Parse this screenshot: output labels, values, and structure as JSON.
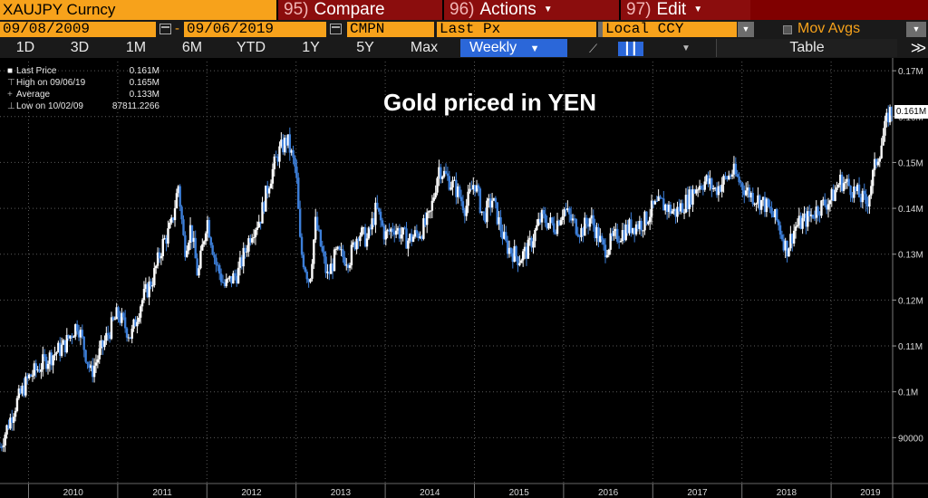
{
  "header": {
    "ticker": "XAUJPY Curncy",
    "compare": {
      "num": "95)",
      "label": "Compare"
    },
    "actions": {
      "num": "96)",
      "label": "Actions"
    },
    "edit": {
      "num": "97)",
      "label": "Edit"
    }
  },
  "controls": {
    "start_date": "09/08/2009",
    "end_date": "09/06/2019",
    "mode": "CMPN",
    "field": "Last Px",
    "currency": "Local CCY",
    "mov_avgs": "Mov Avgs",
    "ranges": [
      "1D",
      "3D",
      "1M",
      "6M",
      "YTD",
      "1Y",
      "5Y",
      "Max"
    ],
    "frequency": "Weekly",
    "table": "Table"
  },
  "legend": [
    {
      "label": "Last Price",
      "value": "0.161M"
    },
    {
      "label": "High on 09/06/19",
      "value": "0.165M"
    },
    {
      "label": "Average",
      "value": "0.133M"
    },
    {
      "label": "Low on 10/02/09",
      "value": "87811.2266"
    }
  ],
  "colors": {
    "accent": "#f7a21b",
    "header_red": "#8b0d0d",
    "candle_up": "#ffffff",
    "candle_down": "#3d7fd9",
    "selected": "#2b67d9"
  },
  "chart_data": {
    "type": "line",
    "title": "Gold priced in YEN",
    "last_value_label": "0.161M",
    "ylim": [
      80000,
      172000
    ],
    "yticks": [
      {
        "value": 90000,
        "label": "90000"
      },
      {
        "value": 100000,
        "label": "0.1M"
      },
      {
        "value": 110000,
        "label": "0.11M"
      },
      {
        "value": 120000,
        "label": "0.12M"
      },
      {
        "value": 130000,
        "label": "0.13M"
      },
      {
        "value": 140000,
        "label": "0.14M"
      },
      {
        "value": 150000,
        "label": "0.15M"
      },
      {
        "value": 160000,
        "label": "0.16M"
      },
      {
        "value": 170000,
        "label": "0.17M"
      }
    ],
    "xlim": [
      2009.68,
      2019.69
    ],
    "xticks": [
      "2010",
      "2011",
      "2012",
      "2013",
      "2014",
      "2015",
      "2016",
      "2017",
      "2018",
      "2019"
    ],
    "series": [
      {
        "x": [
          2009.68,
          2009.85,
          2010.0,
          2010.2,
          2010.4,
          2010.55,
          2010.7,
          2010.9,
          2011.0,
          2011.15,
          2011.25,
          2011.4,
          2011.5,
          2011.6,
          2011.68,
          2011.75,
          2011.82,
          2011.9,
          2012.0,
          2012.1,
          2012.2,
          2012.35,
          2012.5,
          2012.6,
          2012.7,
          2012.8,
          2012.9,
          2013.0,
          2013.05,
          2013.15,
          2013.22,
          2013.35,
          2013.45,
          2013.6,
          2013.7,
          2013.8,
          2013.9,
          2014.0,
          2014.1,
          2014.25,
          2014.4,
          2014.5,
          2014.6,
          2014.8,
          2014.9,
          2015.0,
          2015.1,
          2015.2,
          2015.35,
          2015.5,
          2015.6,
          2015.75,
          2015.9,
          2016.0,
          2016.1,
          2016.2,
          2016.3,
          2016.45,
          2016.6,
          2016.75,
          2016.9,
          2017.0,
          2017.1,
          2017.25,
          2017.4,
          2017.5,
          2017.6,
          2017.7,
          2017.8,
          2017.9,
          2018.0,
          2018.1,
          2018.25,
          2018.4,
          2018.5,
          2018.6,
          2018.75,
          2018.85,
          2019.0,
          2019.1,
          2019.2,
          2019.3,
          2019.35,
          2019.4,
          2019.5,
          2019.55,
          2019.6,
          2019.65,
          2019.69
        ],
        "y": [
          88000,
          97000,
          103000,
          107000,
          110000,
          115000,
          104000,
          113000,
          117000,
          112000,
          119000,
          125000,
          132000,
          136000,
          145000,
          131000,
          136000,
          125000,
          138000,
          128000,
          123000,
          126000,
          135000,
          138000,
          146000,
          152000,
          155000,
          148000,
          131000,
          124000,
          137000,
          125000,
          130000,
          129000,
          135000,
          133000,
          140000,
          134000,
          136000,
          133000,
          135000,
          138000,
          149000,
          144000,
          140000,
          146000,
          138000,
          142000,
          132000,
          129000,
          131000,
          138000,
          136000,
          140000,
          137000,
          135000,
          138000,
          131000,
          134000,
          136000,
          137000,
          140000,
          141000,
          139000,
          142000,
          145000,
          146000,
          144000,
          146000,
          148000,
          145000,
          143000,
          141000,
          137000,
          131000,
          136000,
          138000,
          140000,
          142000,
          146000,
          145000,
          143000,
          142000,
          141000,
          150000,
          153000,
          157000,
          161000,
          161000
        ]
      }
    ]
  }
}
